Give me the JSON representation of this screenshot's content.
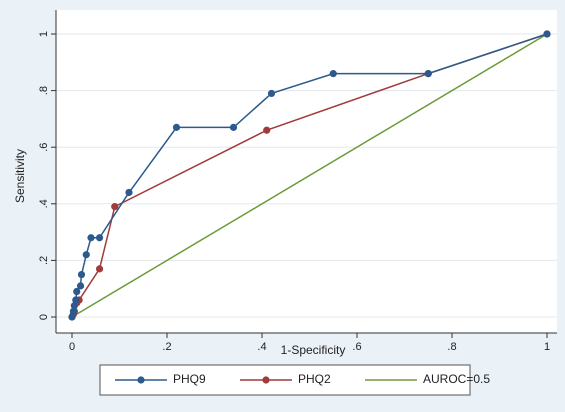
{
  "chart_data": {
    "type": "line",
    "xlabel": "1-Specificity",
    "ylabel": "Sensitivity",
    "xlim": [
      0,
      1
    ],
    "ylim": [
      0,
      1
    ],
    "x_ticks": [
      0,
      0.2,
      0.4,
      0.6,
      0.8,
      1
    ],
    "x_tick_labels": [
      "0",
      ".2",
      ".4",
      ".6",
      ".8",
      "1"
    ],
    "y_ticks": [
      0,
      0.2,
      0.4,
      0.6,
      0.8,
      1
    ],
    "y_tick_labels": [
      "0",
      ".2",
      ".4",
      ".6",
      ".8",
      "1"
    ],
    "grid": true,
    "legend_position": "bottom",
    "series": [
      {
        "name": "PHQ9",
        "color": "#2c5a8c",
        "markers": true,
        "points": [
          [
            0,
            0
          ],
          [
            0.003,
            0.02
          ],
          [
            0.005,
            0.04
          ],
          [
            0.008,
            0.06
          ],
          [
            0.01,
            0.09
          ],
          [
            0.018,
            0.11
          ],
          [
            0.02,
            0.15
          ],
          [
            0.03,
            0.22
          ],
          [
            0.04,
            0.28
          ],
          [
            0.058,
            0.28
          ],
          [
            0.12,
            0.44
          ],
          [
            0.22,
            0.67
          ],
          [
            0.34,
            0.67
          ],
          [
            0.42,
            0.79
          ],
          [
            0.55,
            0.86
          ],
          [
            0.75,
            0.86
          ],
          [
            1,
            1
          ]
        ]
      },
      {
        "name": "PHQ2",
        "color": "#a13a3a",
        "markers": true,
        "points": [
          [
            0,
            0
          ],
          [
            0.003,
            0.01
          ],
          [
            0.005,
            0.02
          ],
          [
            0.01,
            0.05
          ],
          [
            0.015,
            0.06
          ],
          [
            0.058,
            0.17
          ],
          [
            0.09,
            0.39
          ],
          [
            0.41,
            0.66
          ],
          [
            0.75,
            0.86
          ],
          [
            1,
            1
          ]
        ]
      },
      {
        "name": "AUROC=0.5",
        "color": "#6e9a3a",
        "markers": false,
        "points": [
          [
            0,
            0
          ],
          [
            1,
            1
          ]
        ]
      }
    ]
  }
}
